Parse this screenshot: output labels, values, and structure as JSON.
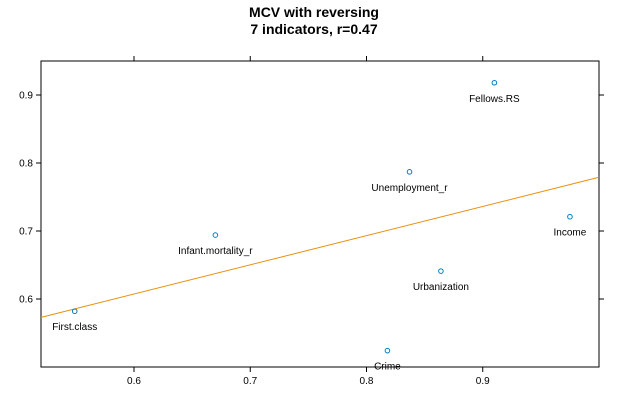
{
  "chart_data": {
    "type": "scatter",
    "title": "MCV with reversing",
    "subtitle": "7 indicators, r=0.47",
    "xlabel": "",
    "ylabel": "",
    "xlim": [
      0.52,
      1.0
    ],
    "ylim": [
      0.5,
      0.95
    ],
    "x_ticks": [
      0.6,
      0.7,
      0.8,
      0.9
    ],
    "x_tick_labels": [
      "0.6",
      "0.7",
      "0.8",
      "0.9"
    ],
    "y_ticks": [
      0.6,
      0.7,
      0.8,
      0.9
    ],
    "y_tick_labels": [
      "0.6",
      "0.7",
      "0.8",
      "0.9"
    ],
    "grid": false,
    "points": [
      {
        "label": "Fellows.RS",
        "x": 0.91,
        "y": 0.918
      },
      {
        "label": "Unemployment_r",
        "x": 0.837,
        "y": 0.787
      },
      {
        "label": "Income",
        "x": 0.975,
        "y": 0.721
      },
      {
        "label": "Infant.mortality_r",
        "x": 0.67,
        "y": 0.694
      },
      {
        "label": "Urbanization",
        "x": 0.864,
        "y": 0.641
      },
      {
        "label": "First.class",
        "x": 0.549,
        "y": 0.582
      },
      {
        "label": "Crime",
        "x": 0.818,
        "y": 0.524
      }
    ],
    "regression_line": {
      "x": [
        0.52,
        1.0
      ],
      "y": [
        0.573,
        0.779
      ]
    },
    "colors": {
      "points": "#0080c0",
      "line": "#e8900c",
      "axis": "#000000"
    }
  }
}
